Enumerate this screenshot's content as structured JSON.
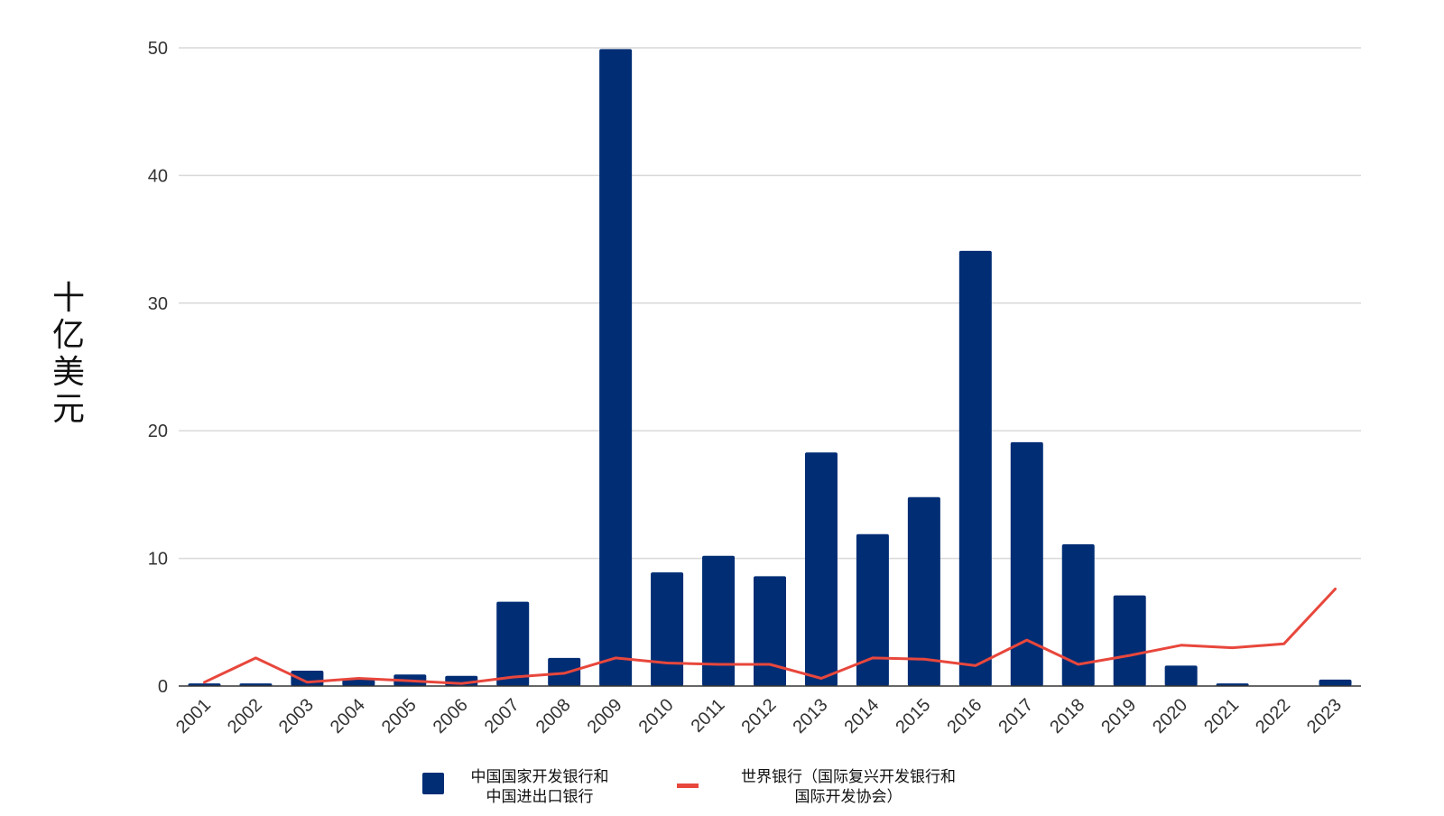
{
  "chart_data": {
    "type": "bar",
    "title": "",
    "xlabel": "",
    "ylabel": "十亿美元",
    "ylim": [
      0,
      50
    ],
    "yticks": [
      0,
      10,
      20,
      30,
      40,
      50
    ],
    "grid": true,
    "legend_position": "bottom",
    "categories": [
      "2001",
      "2002",
      "2003",
      "2004",
      "2005",
      "2006",
      "2007",
      "2008",
      "2009",
      "2010",
      "2011",
      "2012",
      "2013",
      "2014",
      "2015",
      "2016",
      "2017",
      "2018",
      "2019",
      "2020",
      "2021",
      "2022",
      "2023"
    ],
    "series": [
      {
        "name_lines": [
          "中国国家开发银行和",
          "中国进出口银行"
        ],
        "type": "bar",
        "color": "#012D75",
        "values": [
          0.2,
          0.2,
          1.2,
          0.5,
          0.9,
          0.8,
          6.6,
          2.2,
          49.9,
          8.9,
          10.2,
          8.6,
          18.3,
          11.9,
          14.8,
          34.1,
          19.1,
          11.1,
          7.1,
          1.6,
          0.2,
          0,
          0.5
        ]
      },
      {
        "name_lines": [
          "世界银行（国际复兴开发银行和",
          "国际开发协会）"
        ],
        "type": "line",
        "color": "#E8473C",
        "values": [
          0.3,
          2.2,
          0.3,
          0.6,
          0.4,
          0.2,
          0.7,
          1.0,
          2.2,
          1.8,
          1.7,
          1.7,
          0.6,
          2.2,
          2.1,
          1.6,
          3.6,
          1.7,
          2.4,
          3.2,
          3.0,
          3.3,
          7.6
        ]
      }
    ]
  }
}
